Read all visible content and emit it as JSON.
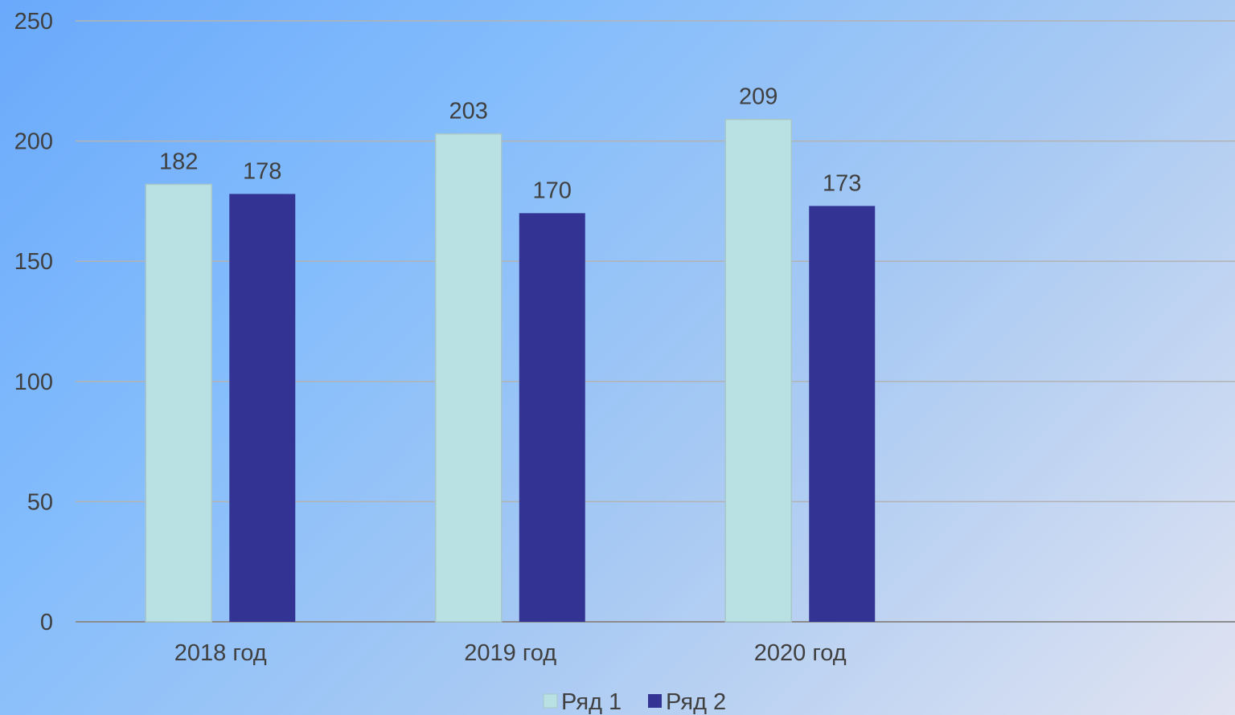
{
  "chart_data": {
    "type": "bar",
    "categories": [
      "2018 год",
      "2019 год",
      "2020 год",
      ""
    ],
    "series": [
      {
        "name": "Ряд 1",
        "values": [
          182,
          203,
          209,
          null
        ],
        "color": "#b9e0e2"
      },
      {
        "name": "Ряд 2",
        "values": [
          178,
          170,
          173,
          null
        ],
        "color": "#333394"
      }
    ],
    "ylim": [
      0,
      250
    ],
    "yticks": [
      0,
      50,
      100,
      150,
      200,
      250
    ],
    "grid": true,
    "data_labels": true,
    "legend_position": "bottom",
    "xlabel": "",
    "ylabel": ""
  },
  "colors": {
    "gridline": "#b3b3b3",
    "axis": "#8c8c8c",
    "text": "#404040",
    "bar_border_series_1": "#a7c7c9"
  }
}
